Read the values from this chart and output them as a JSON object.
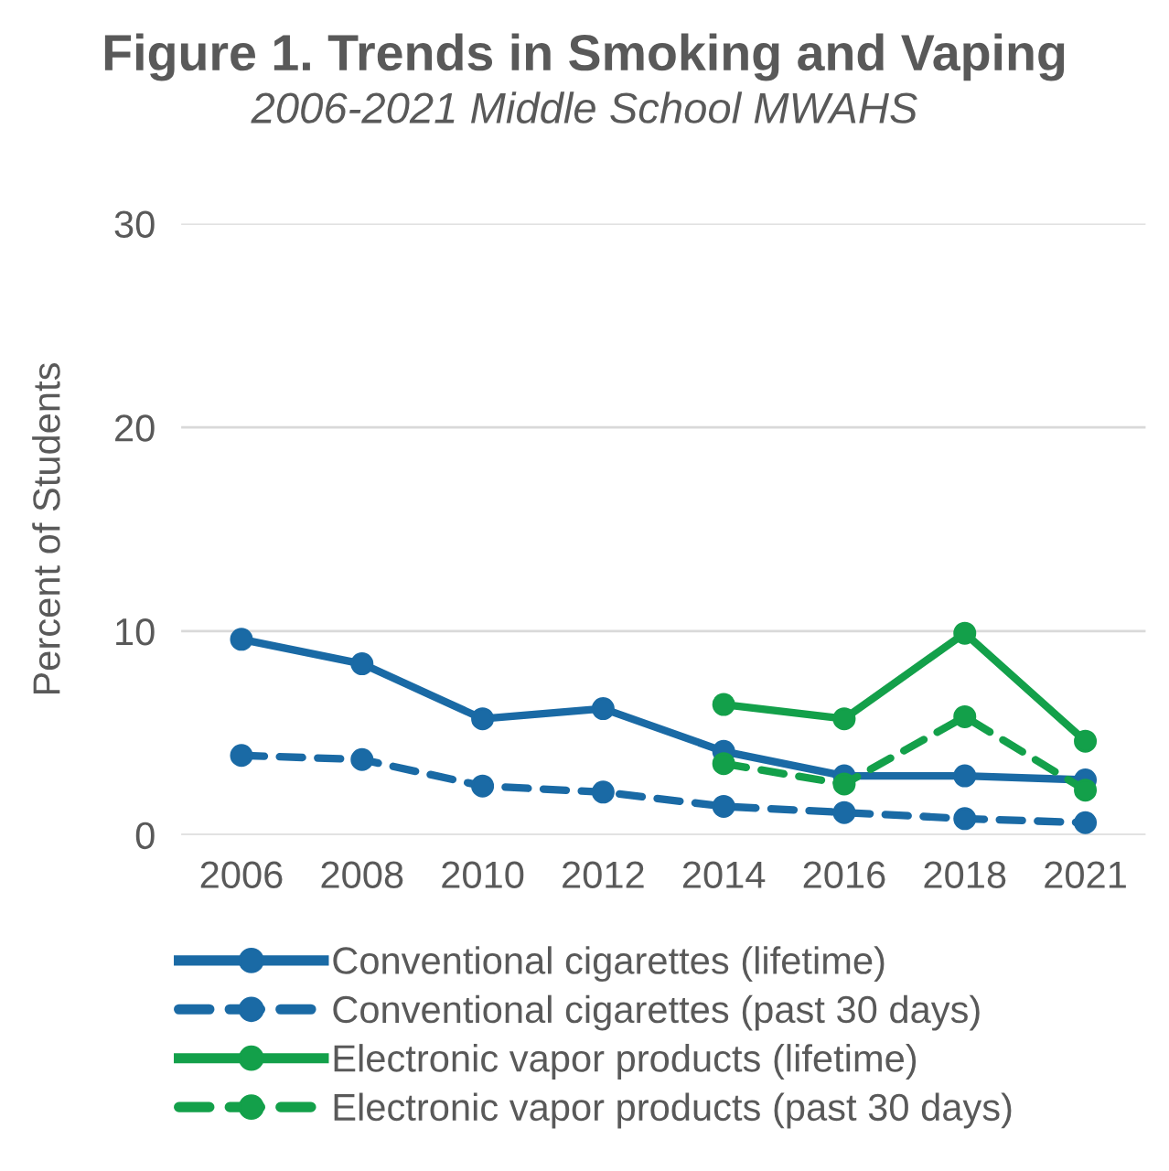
{
  "chart_data": {
    "type": "line",
    "title": "Figure 1. Trends in Smoking and Vaping",
    "subtitle": "2006-2021 Middle School MWAHS",
    "ylabel": "Percent of Students",
    "categories": [
      "2006",
      "2008",
      "2010",
      "2012",
      "2014",
      "2016",
      "2018",
      "2021"
    ],
    "series": [
      {
        "name": "Conventional cigarettes (lifetime)",
        "color": "#1a6aa5",
        "line_style": "solid",
        "values": [
          9.6,
          8.4,
          5.7,
          6.2,
          4.1,
          2.9,
          2.9,
          2.7
        ]
      },
      {
        "name": "Conventional cigarettes (past 30 days)",
        "color": "#1a6aa5",
        "line_style": "dashed",
        "values": [
          3.9,
          3.7,
          2.4,
          2.1,
          1.4,
          1.1,
          0.8,
          0.6
        ]
      },
      {
        "name": "Electronic vapor products (lifetime)",
        "color": "#13a04a",
        "line_style": "solid",
        "values": [
          null,
          null,
          null,
          null,
          6.4,
          5.7,
          9.9,
          4.6
        ]
      },
      {
        "name": "Electronic vapor products (past 30 days)",
        "color": "#13a04a",
        "line_style": "dashed",
        "values": [
          null,
          null,
          null,
          null,
          3.5,
          2.5,
          5.8,
          2.2
        ]
      }
    ],
    "ylim": [
      0,
      30
    ],
    "yticks": [
      0,
      10,
      20,
      30
    ],
    "grid": "y",
    "legend": "bottom",
    "marker": "circle"
  }
}
